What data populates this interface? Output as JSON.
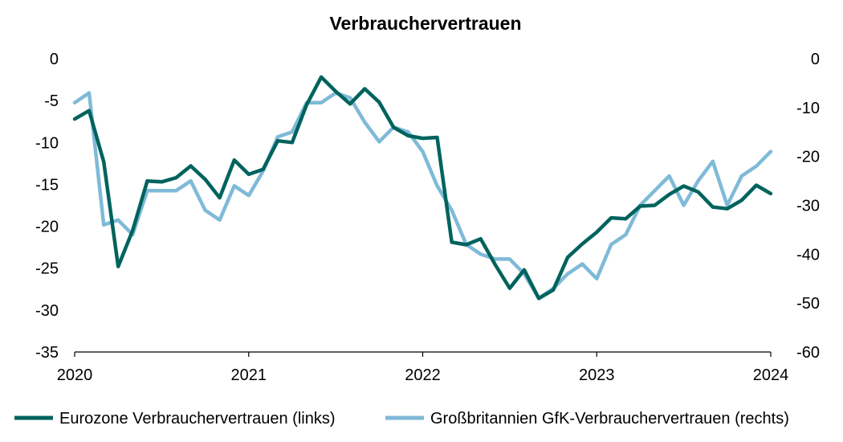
{
  "chart_data": {
    "type": "line",
    "title": "Verbrauchervertrauen",
    "x_tick_labels": [
      "2020",
      "2021",
      "2022",
      "2023",
      "2024"
    ],
    "x_tick_values": [
      2020.0,
      2021.0,
      2022.0,
      2023.0,
      2024.0
    ],
    "xlim": [
      2020.0,
      2024.0
    ],
    "y_left": {
      "ylim": [
        -35,
        0
      ],
      "tick_values": [
        0,
        -5,
        -10,
        -15,
        -20,
        -25,
        -30,
        -35
      ],
      "tick_labels": [
        "0",
        "-5",
        "-10",
        "-15",
        "-20",
        "-25",
        "-30",
        "-35"
      ]
    },
    "y_right": {
      "ylim": [
        -60,
        0
      ],
      "tick_values": [
        0,
        -10,
        -20,
        -30,
        -40,
        -50,
        -60
      ],
      "tick_labels": [
        "0",
        "-10",
        "-20",
        "-30",
        "-40",
        "-50",
        "-60"
      ]
    },
    "grid": false,
    "legend_position": "bottom",
    "series": [
      {
        "name": "Eurozone Verbrauchervertrauen (links)",
        "axis": "left",
        "color": "#00635e",
        "x": [
          2020.0,
          2020.083,
          2020.167,
          2020.25,
          2020.333,
          2020.417,
          2020.5,
          2020.583,
          2020.667,
          2020.75,
          2020.833,
          2020.917,
          2021.0,
          2021.083,
          2021.167,
          2021.25,
          2021.333,
          2021.417,
          2021.5,
          2021.583,
          2021.667,
          2021.75,
          2021.833,
          2021.917,
          2022.0,
          2022.083,
          2022.167,
          2022.25,
          2022.333,
          2022.417,
          2022.5,
          2022.583,
          2022.667,
          2022.75,
          2022.833,
          2022.917,
          2023.0,
          2023.083,
          2023.167,
          2023.25,
          2023.333,
          2023.417,
          2023.5,
          2023.583,
          2023.667,
          2023.75,
          2023.833,
          2023.917,
          2024.0
        ],
        "values": [
          -7.2,
          -6.2,
          -12.3,
          -24.8,
          -20.5,
          -14.6,
          -14.7,
          -14.2,
          -12.8,
          -14.4,
          -16.6,
          -12.1,
          -13.8,
          -13.2,
          -9.8,
          -10.0,
          -5.5,
          -2.2,
          -3.9,
          -5.4,
          -3.6,
          -5.2,
          -8.2,
          -9.2,
          -9.5,
          -9.4,
          -21.9,
          -22.2,
          -21.5,
          -24.6,
          -27.4,
          -25.2,
          -28.6,
          -27.6,
          -23.7,
          -22.1,
          -20.7,
          -19.0,
          -19.1,
          -17.6,
          -17.5,
          -16.2,
          -15.2,
          -15.9,
          -17.7,
          -17.9,
          -16.9,
          -15.1,
          -16.1
        ]
      },
      {
        "name": "Großbritannien GfK-Verbrauchervertrauen (rechts)",
        "axis": "right",
        "color": "#7fbad8",
        "x": [
          2020.0,
          2020.083,
          2020.167,
          2020.25,
          2020.333,
          2020.417,
          2020.5,
          2020.583,
          2020.667,
          2020.75,
          2020.833,
          2020.917,
          2021.0,
          2021.083,
          2021.167,
          2021.25,
          2021.333,
          2021.417,
          2021.5,
          2021.583,
          2021.667,
          2021.75,
          2021.833,
          2021.917,
          2022.0,
          2022.083,
          2022.167,
          2022.25,
          2022.333,
          2022.417,
          2022.5,
          2022.583,
          2022.667,
          2022.75,
          2022.833,
          2022.917,
          2023.0,
          2023.083,
          2023.167,
          2023.25,
          2023.333,
          2023.417,
          2023.5,
          2023.583,
          2023.667,
          2023.75,
          2023.833,
          2023.917,
          2024.0
        ],
        "values": [
          -9,
          -7,
          -34,
          -33,
          -36,
          -27,
          -27,
          -27,
          -25,
          -31,
          -33,
          -26,
          -28,
          -23,
          -16,
          -15,
          -9,
          -9,
          -7,
          -8,
          -13,
          -17,
          -14,
          -15,
          -19,
          -26,
          -31,
          -38,
          -40,
          -41,
          -41,
          -44,
          -49,
          -47,
          -44,
          -42,
          -45,
          -38,
          -36,
          -30,
          -27,
          -24,
          -30,
          -25,
          -21,
          -30,
          -24,
          -22,
          -19
        ]
      }
    ]
  }
}
